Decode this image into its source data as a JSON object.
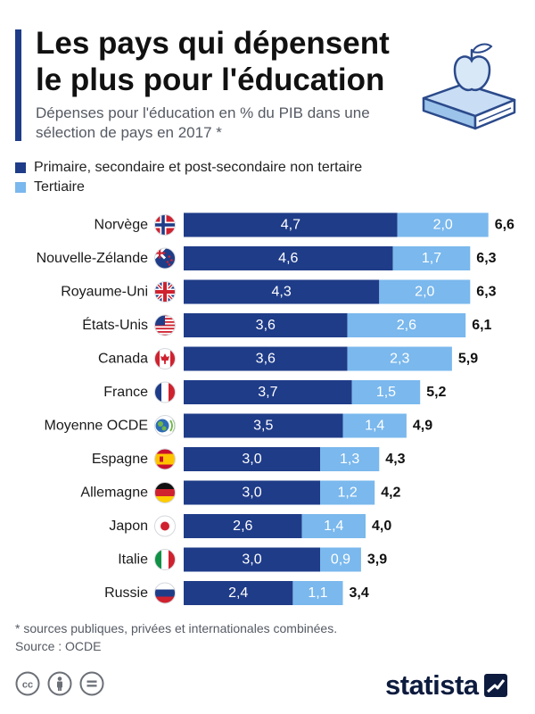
{
  "header": {
    "title": "Les pays qui dépensent le plus pour l'éducation",
    "subtitle": "Dépenses pour l'éducation en % du PIB dans une sélection de pays en 2017 *"
  },
  "colors": {
    "primary_series": "#1f3c88",
    "tertiary_series": "#7ab8ed",
    "title_accent": "#1f3c88"
  },
  "icons": {
    "illustration": "book-with-apple-icon",
    "license": [
      "creative-commons-icon",
      "attribution-person-icon",
      "no-derivatives-icon"
    ],
    "brand_mark": "statista-logo-icon"
  },
  "chart_data": {
    "type": "bar",
    "orientation": "horizontal",
    "stacked": true,
    "categories": [
      "Norvège",
      "Nouvelle-Zélande",
      "Royaume-Uni",
      "États-Unis",
      "Canada",
      "France",
      "Moyenne OCDE",
      "Espagne",
      "Allemagne",
      "Japon",
      "Italie",
      "Russie"
    ],
    "flags": [
      "flag-norway-icon",
      "flag-new-zealand-icon",
      "flag-united-kingdom-icon",
      "flag-united-states-icon",
      "flag-canada-icon",
      "flag-france-icon",
      "oecd-logo-icon",
      "flag-spain-icon",
      "flag-germany-icon",
      "flag-japan-icon",
      "flag-italy-icon",
      "flag-russia-icon"
    ],
    "series": [
      {
        "name": "Primaire, secondaire et post-secondaire non tertaire",
        "values": [
          4.7,
          4.6,
          4.3,
          3.6,
          3.6,
          3.7,
          3.5,
          3.0,
          3.0,
          2.6,
          3.0,
          2.4
        ],
        "labels": [
          "4,7",
          "4,6",
          "4,3",
          "3,6",
          "3,6",
          "3,7",
          "3,5",
          "3,0",
          "3,0",
          "2,6",
          "3,0",
          "2,4"
        ]
      },
      {
        "name": "Tertiaire",
        "values": [
          2.0,
          1.7,
          2.0,
          2.6,
          2.3,
          1.5,
          1.4,
          1.3,
          1.2,
          1.4,
          0.9,
          1.1
        ],
        "labels": [
          "2,0",
          "1,7",
          "2,0",
          "2,6",
          "2,3",
          "1,5",
          "1,4",
          "1,3",
          "1,2",
          "1,4",
          "0,9",
          "1,1"
        ]
      }
    ],
    "totals": [
      6.6,
      6.3,
      6.3,
      6.1,
      5.9,
      5.2,
      4.9,
      4.3,
      4.2,
      4.0,
      3.9,
      3.4
    ],
    "total_labels": [
      "6,6",
      "6,3",
      "6,3",
      "6,1",
      "5,9",
      "5,2",
      "4,9",
      "4,3",
      "4,2",
      "4,0",
      "3,9",
      "3,4"
    ],
    "xlim": [
      0,
      6.6
    ],
    "grid": false,
    "legend_position": "top-left"
  },
  "footer": {
    "note": "* sources publiques, privées et internationales combinées.",
    "source": "Source : OCDE",
    "brand": "statista"
  }
}
